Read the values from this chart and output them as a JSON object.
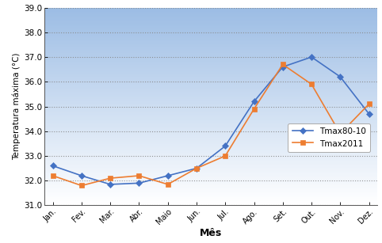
{
  "months": [
    "Jan.",
    "Fev.",
    "Mar.",
    "Abr.",
    "Maio",
    "Jun.",
    "Jul.",
    "Ago.",
    "Set.",
    "Out.",
    "Nov.",
    "Dez."
  ],
  "tmax80_10": [
    32.6,
    32.2,
    31.85,
    31.9,
    32.2,
    32.5,
    33.4,
    35.2,
    36.6,
    37.0,
    36.2,
    34.7
  ],
  "tmax2011": [
    32.2,
    31.8,
    32.1,
    32.2,
    31.85,
    32.5,
    33.0,
    34.9,
    36.7,
    35.9,
    33.9,
    35.1
  ],
  "color_80_10": "#4472C4",
  "color_2011": "#ED7D31",
  "ylabel": "Temperatura máxima (°C)",
  "xlabel": "Mês",
  "ylim_min": 31.0,
  "ylim_max": 39.0,
  "yticks": [
    31.0,
    32.0,
    33.0,
    34.0,
    35.0,
    36.0,
    37.0,
    38.0,
    39.0
  ],
  "legend_labels": [
    "Tmax80-10",
    "Tmax2011"
  ],
  "bg_color_top": "#B8D0E8",
  "bg_color_bottom": "#FFFFFF"
}
